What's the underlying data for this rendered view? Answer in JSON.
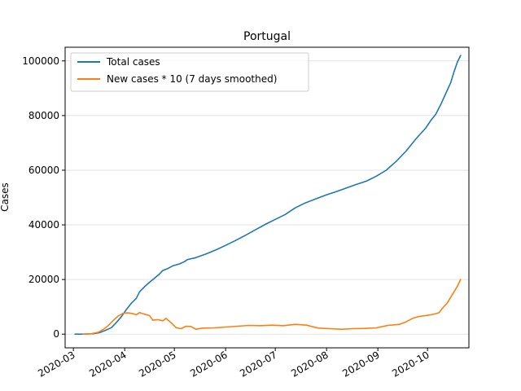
{
  "chart_data": {
    "type": "line",
    "title": "Portugal",
    "xlabel": "",
    "ylabel": "Cases",
    "xlim": [
      "2020-02-25",
      "2020-10-26"
    ],
    "ylim": [
      -5000,
      105000
    ],
    "grid": "horizontal",
    "legend_position": "top-left",
    "x_ticks": [
      {
        "date": "2020-03-01",
        "label": "2020-03"
      },
      {
        "date": "2020-04-01",
        "label": "2020-04"
      },
      {
        "date": "2020-05-01",
        "label": "2020-05"
      },
      {
        "date": "2020-06-01",
        "label": "2020-06"
      },
      {
        "date": "2020-07-01",
        "label": "2020-07"
      },
      {
        "date": "2020-08-01",
        "label": "2020-08"
      },
      {
        "date": "2020-09-01",
        "label": "2020-09"
      },
      {
        "date": "2020-10-01",
        "label": "2020-10"
      }
    ],
    "y_ticks": [
      {
        "value": 0,
        "label": "0"
      },
      {
        "value": 20000,
        "label": "20000"
      },
      {
        "value": 40000,
        "label": "40000"
      },
      {
        "value": 60000,
        "label": "60000"
      },
      {
        "value": 80000,
        "label": "80000"
      },
      {
        "value": 100000,
        "label": "100000"
      }
    ],
    "series": [
      {
        "name": "Total cases",
        "color": "#1f77b4",
        "points": [
          [
            "2020-03-02",
            0
          ],
          [
            "2020-03-08",
            30
          ],
          [
            "2020-03-13",
            170
          ],
          [
            "2020-03-17",
            600
          ],
          [
            "2020-03-20",
            1300
          ],
          [
            "2020-03-24",
            2400
          ],
          [
            "2020-03-27",
            4300
          ],
          [
            "2020-03-30",
            6400
          ],
          [
            "2020-04-02",
            9000
          ],
          [
            "2020-04-05",
            11300
          ],
          [
            "2020-04-08",
            13100
          ],
          [
            "2020-04-10",
            15500
          ],
          [
            "2020-04-13",
            17400
          ],
          [
            "2020-04-16",
            19000
          ],
          [
            "2020-04-19",
            20500
          ],
          [
            "2020-04-22",
            22000
          ],
          [
            "2020-04-24",
            23300
          ],
          [
            "2020-04-27",
            24000
          ],
          [
            "2020-04-30",
            25000
          ],
          [
            "2020-05-04",
            25700
          ],
          [
            "2020-05-07",
            26500
          ],
          [
            "2020-05-09",
            27300
          ],
          [
            "2020-05-14",
            28000
          ],
          [
            "2020-05-20",
            29300
          ],
          [
            "2020-05-26",
            30800
          ],
          [
            "2020-06-01",
            32500
          ],
          [
            "2020-06-07",
            34300
          ],
          [
            "2020-06-13",
            36200
          ],
          [
            "2020-06-19",
            38200
          ],
          [
            "2020-06-25",
            40200
          ],
          [
            "2020-07-01",
            42000
          ],
          [
            "2020-07-07",
            43800
          ],
          [
            "2020-07-13",
            46200
          ],
          [
            "2020-07-19",
            48000
          ],
          [
            "2020-07-25",
            49400
          ],
          [
            "2020-08-01",
            51000
          ],
          [
            "2020-08-07",
            52200
          ],
          [
            "2020-08-13",
            53500
          ],
          [
            "2020-08-19",
            54800
          ],
          [
            "2020-08-25",
            56000
          ],
          [
            "2020-08-31",
            57800
          ],
          [
            "2020-09-06",
            60000
          ],
          [
            "2020-09-12",
            63200
          ],
          [
            "2020-09-18",
            67000
          ],
          [
            "2020-09-24",
            71500
          ],
          [
            "2020-09-30",
            75500
          ],
          [
            "2020-10-03",
            78200
          ],
          [
            "2020-10-06",
            80500
          ],
          [
            "2020-10-09",
            84000
          ],
          [
            "2020-10-12",
            88000
          ],
          [
            "2020-10-15",
            92000
          ],
          [
            "2020-10-17",
            96000
          ],
          [
            "2020-10-19",
            99500
          ],
          [
            "2020-10-21",
            102000
          ]
        ]
      },
      {
        "name": "New cases * 10 (7 days smoothed)",
        "color": "#ff7f0e",
        "points": [
          [
            "2020-03-07",
            0
          ],
          [
            "2020-03-12",
            150
          ],
          [
            "2020-03-16",
            700
          ],
          [
            "2020-03-19",
            1700
          ],
          [
            "2020-03-22",
            3100
          ],
          [
            "2020-03-25",
            5000
          ],
          [
            "2020-03-28",
            6600
          ],
          [
            "2020-03-31",
            7600
          ],
          [
            "2020-04-03",
            7800
          ],
          [
            "2020-04-06",
            7500
          ],
          [
            "2020-04-08",
            7100
          ],
          [
            "2020-04-10",
            7900
          ],
          [
            "2020-04-13",
            7300
          ],
          [
            "2020-04-16",
            6800
          ],
          [
            "2020-04-18",
            5100
          ],
          [
            "2020-04-21",
            5300
          ],
          [
            "2020-04-24",
            4900
          ],
          [
            "2020-04-26",
            5800
          ],
          [
            "2020-04-29",
            4200
          ],
          [
            "2020-05-02",
            2400
          ],
          [
            "2020-05-05",
            2000
          ],
          [
            "2020-05-08",
            2900
          ],
          [
            "2020-05-11",
            2800
          ],
          [
            "2020-05-14",
            1800
          ],
          [
            "2020-05-18",
            2200
          ],
          [
            "2020-05-25",
            2300
          ],
          [
            "2020-06-01",
            2600
          ],
          [
            "2020-06-08",
            2900
          ],
          [
            "2020-06-15",
            3200
          ],
          [
            "2020-06-22",
            3100
          ],
          [
            "2020-06-29",
            3300
          ],
          [
            "2020-07-06",
            3100
          ],
          [
            "2020-07-13",
            3600
          ],
          [
            "2020-07-20",
            3300
          ],
          [
            "2020-07-27",
            2200
          ],
          [
            "2020-08-03",
            2000
          ],
          [
            "2020-08-10",
            1800
          ],
          [
            "2020-08-17",
            2000
          ],
          [
            "2020-08-24",
            2100
          ],
          [
            "2020-08-31",
            2300
          ],
          [
            "2020-09-07",
            3200
          ],
          [
            "2020-09-14",
            3600
          ],
          [
            "2020-09-18",
            4500
          ],
          [
            "2020-09-22",
            5800
          ],
          [
            "2020-09-26",
            6500
          ],
          [
            "2020-09-30",
            6800
          ],
          [
            "2020-10-03",
            7100
          ],
          [
            "2020-10-06",
            7500
          ],
          [
            "2020-10-08",
            7900
          ],
          [
            "2020-10-10",
            9500
          ],
          [
            "2020-10-13",
            11500
          ],
          [
            "2020-10-16",
            14500
          ],
          [
            "2020-10-19",
            17500
          ],
          [
            "2020-10-21",
            20000
          ]
        ]
      }
    ]
  }
}
